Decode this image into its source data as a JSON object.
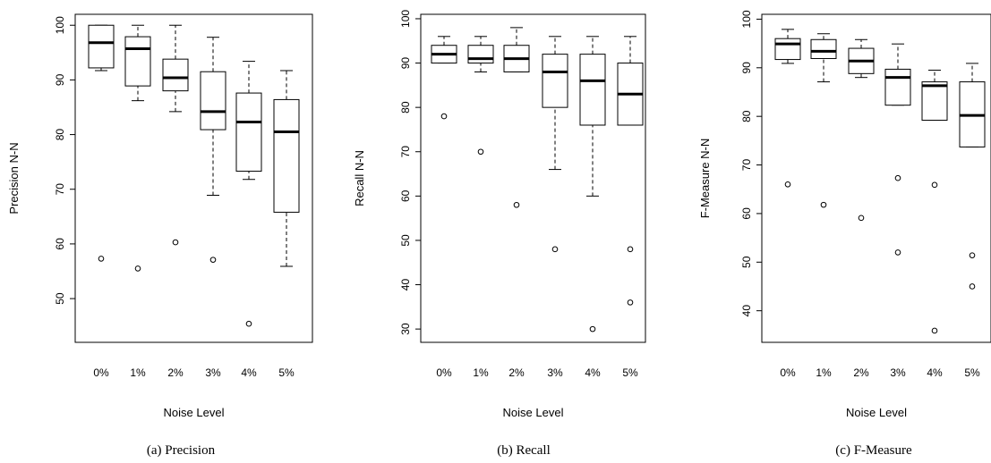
{
  "chart_data": [
    {
      "type": "boxplot",
      "caption": "(a)    Precision",
      "xlabel": "Noise Level",
      "ylabel": "Precision N-N",
      "ylim": [
        42,
        102
      ],
      "yticks": [
        50,
        60,
        70,
        80,
        90,
        100
      ],
      "categories": [
        "0%",
        "1%",
        "2%",
        "3%",
        "4%",
        "5%"
      ],
      "boxes": [
        {
          "low": 91.7,
          "q1": 92.2,
          "median": 96.8,
          "q3": 100,
          "high": 100,
          "outliers": [
            57.3
          ]
        },
        {
          "low": 86.2,
          "q1": 88.9,
          "median": 95.7,
          "q3": 97.9,
          "high": 100,
          "outliers": [
            55.5
          ]
        },
        {
          "low": 84.2,
          "q1": 88.0,
          "median": 90.4,
          "q3": 93.8,
          "high": 100,
          "outliers": [
            60.3
          ]
        },
        {
          "low": 68.9,
          "q1": 80.9,
          "median": 84.2,
          "q3": 91.5,
          "high": 97.8,
          "outliers": [
            57.1
          ]
        },
        {
          "low": 71.8,
          "q1": 73.3,
          "median": 82.3,
          "q3": 87.6,
          "high": 93.4,
          "outliers": [
            45.4
          ]
        },
        {
          "low": 55.9,
          "q1": 65.8,
          "median": 80.5,
          "q3": 86.4,
          "high": 91.7,
          "outliers": []
        }
      ]
    },
    {
      "type": "boxplot",
      "caption": "(b) Recall",
      "xlabel": "Noise Level",
      "ylabel": "Recall N-N",
      "ylim": [
        27,
        101
      ],
      "yticks": [
        30,
        40,
        50,
        60,
        70,
        80,
        90,
        100
      ],
      "categories": [
        "0%",
        "1%",
        "2%",
        "3%",
        "4%",
        "5%"
      ],
      "boxes": [
        {
          "low": 90,
          "q1": 90,
          "median": 92,
          "q3": 94,
          "high": 96,
          "outliers": [
            78
          ]
        },
        {
          "low": 88,
          "q1": 90,
          "median": 91,
          "q3": 94,
          "high": 96,
          "outliers": [
            70
          ]
        },
        {
          "low": 88,
          "q1": 88,
          "median": 91,
          "q3": 94,
          "high": 98,
          "outliers": [
            58
          ]
        },
        {
          "low": 66,
          "q1": 80,
          "median": 88,
          "q3": 92,
          "high": 96,
          "outliers": [
            48
          ]
        },
        {
          "low": 60,
          "q1": 76,
          "median": 86,
          "q3": 92,
          "high": 96,
          "outliers": [
            30
          ]
        },
        {
          "low": 76,
          "q1": 76,
          "median": 83,
          "q3": 90,
          "high": 96,
          "outliers": [
            48,
            36
          ]
        }
      ]
    },
    {
      "type": "boxplot",
      "caption": "(c) F-Measure",
      "xlabel": "Noise Level",
      "ylabel": "F-Measure N-N",
      "ylim": [
        33.5,
        101
      ],
      "yticks": [
        40,
        50,
        60,
        70,
        80,
        90,
        100
      ],
      "categories": [
        "0%",
        "1%",
        "2%",
        "3%",
        "4%",
        "5%"
      ],
      "boxes": [
        {
          "low": 90.9,
          "q1": 91.7,
          "median": 94.9,
          "q3": 96.0,
          "high": 97.9,
          "outliers": [
            66.0
          ]
        },
        {
          "low": 87.1,
          "q1": 91.9,
          "median": 93.4,
          "q3": 95.8,
          "high": 97.0,
          "outliers": [
            61.8
          ]
        },
        {
          "low": 88.0,
          "q1": 88.8,
          "median": 91.4,
          "q3": 94.0,
          "high": 95.8,
          "outliers": [
            59.1
          ]
        },
        {
          "low": 82.3,
          "q1": 82.3,
          "median": 88.0,
          "q3": 89.7,
          "high": 94.9,
          "outliers": [
            67.3,
            52.0
          ]
        },
        {
          "low": 79.2,
          "q1": 79.2,
          "median": 86.3,
          "q3": 87.1,
          "high": 89.5,
          "outliers": [
            65.9,
            35.9
          ]
        },
        {
          "low": 73.7,
          "q1": 73.7,
          "median": 80.2,
          "q3": 87.1,
          "high": 90.9,
          "outliers": [
            51.4,
            45.0
          ]
        }
      ]
    }
  ]
}
